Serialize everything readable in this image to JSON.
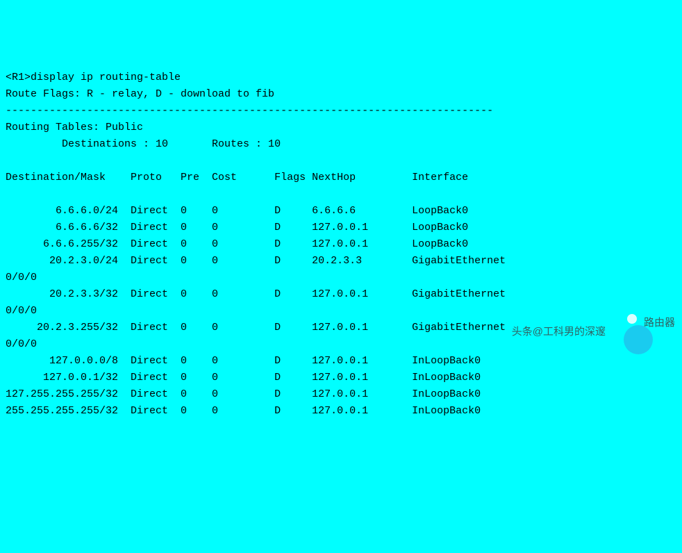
{
  "terminal": {
    "background_color": "#00ffff",
    "text_color": "#000000",
    "font_family": "Courier New",
    "font_size": 15,
    "prompt_line": "<R1>display ip routing-table",
    "flags_line": "Route Flags: R - relay, D - download to fib",
    "separator": "------------------------------------------------------------------------------",
    "table_header": "Routing Tables: Public",
    "summary_line": "         Destinations : 10       Routes : 10",
    "columns": {
      "dest": "Destination/Mask",
      "proto": "Proto",
      "pre": "Pre",
      "cost": "Cost",
      "flags": "Flags",
      "nexthop": "NextHop",
      "interface": "Interface"
    },
    "rows": [
      {
        "dest": "6.6.6.0/24",
        "proto": "Direct",
        "pre": "0",
        "cost": "0",
        "flags": "D",
        "nexthop": "6.6.6.6",
        "interface": "LoopBack0",
        "wrap": ""
      },
      {
        "dest": "6.6.6.6/32",
        "proto": "Direct",
        "pre": "0",
        "cost": "0",
        "flags": "D",
        "nexthop": "127.0.0.1",
        "interface": "LoopBack0",
        "wrap": ""
      },
      {
        "dest": "6.6.6.255/32",
        "proto": "Direct",
        "pre": "0",
        "cost": "0",
        "flags": "D",
        "nexthop": "127.0.0.1",
        "interface": "LoopBack0",
        "wrap": ""
      },
      {
        "dest": "20.2.3.0/24",
        "proto": "Direct",
        "pre": "0",
        "cost": "0",
        "flags": "D",
        "nexthop": "20.2.3.3",
        "interface": "GigabitEthernet",
        "wrap": "0/0/0"
      },
      {
        "dest": "20.2.3.3/32",
        "proto": "Direct",
        "pre": "0",
        "cost": "0",
        "flags": "D",
        "nexthop": "127.0.0.1",
        "interface": "GigabitEthernet",
        "wrap": "0/0/0"
      },
      {
        "dest": "20.2.3.255/32",
        "proto": "Direct",
        "pre": "0",
        "cost": "0",
        "flags": "D",
        "nexthop": "127.0.0.1",
        "interface": "GigabitEthernet",
        "wrap": "0/0/0"
      },
      {
        "dest": "127.0.0.0/8",
        "proto": "Direct",
        "pre": "0",
        "cost": "0",
        "flags": "D",
        "nexthop": "127.0.0.1",
        "interface": "InLoopBack0",
        "wrap": ""
      },
      {
        "dest": "127.0.0.1/32",
        "proto": "Direct",
        "pre": "0",
        "cost": "0",
        "flags": "D",
        "nexthop": "127.0.0.1",
        "interface": "InLoopBack0",
        "wrap": ""
      },
      {
        "dest": "127.255.255.255/32",
        "proto": "Direct",
        "pre": "0",
        "cost": "0",
        "flags": "D",
        "nexthop": "127.0.0.1",
        "interface": "InLoopBack0",
        "wrap": ""
      },
      {
        "dest": "255.255.255.255/32",
        "proto": "Direct",
        "pre": "0",
        "cost": "0",
        "flags": "D",
        "nexthop": "127.0.0.1",
        "interface": "InLoopBack0",
        "wrap": ""
      }
    ],
    "col_widths": {
      "dest": 18,
      "proto": 8,
      "pre": 5,
      "cost": 10,
      "flags": 6,
      "nexthop": 16,
      "interface": 0
    }
  },
  "watermark": {
    "text_left": "头条@工科男的深邃",
    "text_right": "路由器",
    "logo_bg": "rgba(58,140,220,0.45)",
    "logo_dot": "rgba(255,255,255,0.85)"
  }
}
